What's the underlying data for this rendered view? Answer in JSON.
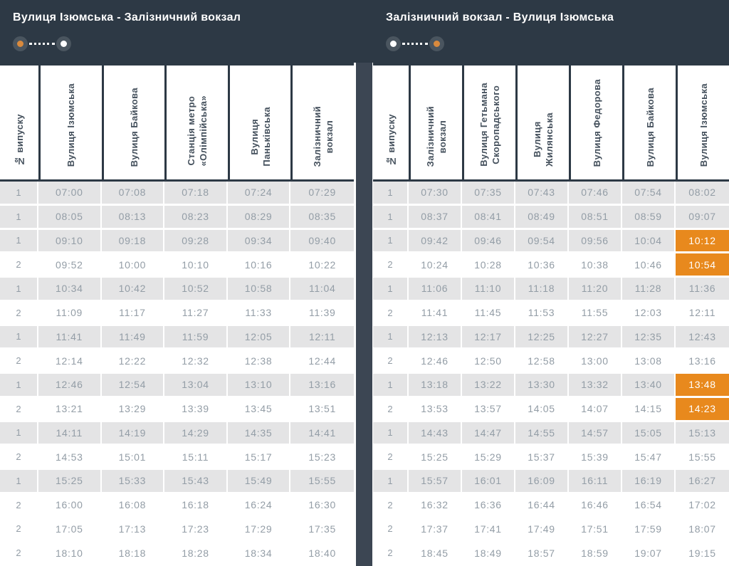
{
  "colors": {
    "header_band": "#2d3945",
    "divider": "#3c4653",
    "table_border": "#2d3945",
    "row_shaded": "#e4e4e5",
    "time_text": "#939da6",
    "header_text": "#44505c",
    "highlight": "#e8891d",
    "highlight_text": "#ffffff",
    "indicator_disc": "#4a555f",
    "indicator_orange": "#d98a3d",
    "indicator_white": "#ffffff"
  },
  "panels": [
    {
      "title": "Вулиця Ізюмська - Залізничний вокзал",
      "route_indicator": {
        "dots": [
          "orange",
          "white"
        ]
      },
      "columns": [
        "№ випуску",
        "Вулиця Ізюмська",
        "Вулиця Байкова",
        "Станція метро\n«Олімпійська»",
        "Вулиця\nПаньківська",
        "Залізничний\nвокзал"
      ],
      "rows": [
        {
          "n": "1",
          "times": [
            "07:00",
            "07:08",
            "07:18",
            "07:24",
            "07:29"
          ]
        },
        {
          "n": "1",
          "times": [
            "08:05",
            "08:13",
            "08:23",
            "08:29",
            "08:35"
          ]
        },
        {
          "n": "1",
          "times": [
            "09:10",
            "09:18",
            "09:28",
            "09:34",
            "09:40"
          ]
        },
        {
          "n": "2",
          "times": [
            "09:52",
            "10:00",
            "10:10",
            "10:16",
            "10:22"
          ]
        },
        {
          "n": "1",
          "times": [
            "10:34",
            "10:42",
            "10:52",
            "10:58",
            "11:04"
          ]
        },
        {
          "n": "2",
          "times": [
            "11:09",
            "11:17",
            "11:27",
            "11:33",
            "11:39"
          ]
        },
        {
          "n": "1",
          "times": [
            "11:41",
            "11:49",
            "11:59",
            "12:05",
            "12:11"
          ]
        },
        {
          "n": "2",
          "times": [
            "12:14",
            "12:22",
            "12:32",
            "12:38",
            "12:44"
          ]
        },
        {
          "n": "1",
          "times": [
            "12:46",
            "12:54",
            "13:04",
            "13:10",
            "13:16"
          ]
        },
        {
          "n": "2",
          "times": [
            "13:21",
            "13:29",
            "13:39",
            "13:45",
            "13:51"
          ]
        },
        {
          "n": "1",
          "times": [
            "14:11",
            "14:19",
            "14:29",
            "14:35",
            "14:41"
          ]
        },
        {
          "n": "2",
          "times": [
            "14:53",
            "15:01",
            "15:11",
            "15:17",
            "15:23"
          ]
        },
        {
          "n": "1",
          "times": [
            "15:25",
            "15:33",
            "15:43",
            "15:49",
            "15:55"
          ]
        },
        {
          "n": "2",
          "times": [
            "16:00",
            "16:08",
            "16:18",
            "16:24",
            "16:30"
          ]
        },
        {
          "n": "2",
          "times": [
            "17:05",
            "17:13",
            "17:23",
            "17:29",
            "17:35"
          ]
        },
        {
          "n": "2",
          "times": [
            "18:10",
            "18:18",
            "18:28",
            "18:34",
            "18:40"
          ]
        }
      ]
    },
    {
      "title": "Залізничний вокзал - Вулиця Ізюмська",
      "route_indicator": {
        "dots": [
          "white",
          "orange"
        ]
      },
      "columns": [
        "№ випуску",
        "Залізничний\nвокзал",
        "Вулиця Гетьмана\nСкоропадського",
        "Вулиця\nЖилянська",
        "Вулиця Федорова",
        "Вулиця Байкова",
        "Вулиця Ізюмська"
      ],
      "rows": [
        {
          "n": "1",
          "times": [
            "07:30",
            "07:35",
            "07:43",
            "07:46",
            "07:54",
            "08:02"
          ]
        },
        {
          "n": "1",
          "times": [
            "08:37",
            "08:41",
            "08:49",
            "08:51",
            "08:59",
            "09:07"
          ]
        },
        {
          "n": "1",
          "times": [
            "09:42",
            "09:46",
            "09:54",
            "09:56",
            "10:04",
            "10:12"
          ],
          "highlight_last": true
        },
        {
          "n": "2",
          "times": [
            "10:24",
            "10:28",
            "10:36",
            "10:38",
            "10:46",
            "10:54"
          ],
          "highlight_last": true
        },
        {
          "n": "1",
          "times": [
            "11:06",
            "11:10",
            "11:18",
            "11:20",
            "11:28",
            "11:36"
          ]
        },
        {
          "n": "2",
          "times": [
            "11:41",
            "11:45",
            "11:53",
            "11:55",
            "12:03",
            "12:11"
          ]
        },
        {
          "n": "1",
          "times": [
            "12:13",
            "12:17",
            "12:25",
            "12:27",
            "12:35",
            "12:43"
          ]
        },
        {
          "n": "2",
          "times": [
            "12:46",
            "12:50",
            "12:58",
            "13:00",
            "13:08",
            "13:16"
          ]
        },
        {
          "n": "1",
          "times": [
            "13:18",
            "13:22",
            "13:30",
            "13:32",
            "13:40",
            "13:48"
          ],
          "highlight_last": true
        },
        {
          "n": "2",
          "times": [
            "13:53",
            "13:57",
            "14:05",
            "14:07",
            "14:15",
            "14:23"
          ],
          "highlight_last": true
        },
        {
          "n": "1",
          "times": [
            "14:43",
            "14:47",
            "14:55",
            "14:57",
            "15:05",
            "15:13"
          ]
        },
        {
          "n": "2",
          "times": [
            "15:25",
            "15:29",
            "15:37",
            "15:39",
            "15:47",
            "15:55"
          ]
        },
        {
          "n": "1",
          "times": [
            "15:57",
            "16:01",
            "16:09",
            "16:11",
            "16:19",
            "16:27"
          ]
        },
        {
          "n": "2",
          "times": [
            "16:32",
            "16:36",
            "16:44",
            "16:46",
            "16:54",
            "17:02"
          ]
        },
        {
          "n": "2",
          "times": [
            "17:37",
            "17:41",
            "17:49",
            "17:51",
            "17:59",
            "18:07"
          ]
        },
        {
          "n": "2",
          "times": [
            "18:45",
            "18:49",
            "18:57",
            "18:59",
            "19:07",
            "19:15"
          ]
        }
      ]
    }
  ]
}
